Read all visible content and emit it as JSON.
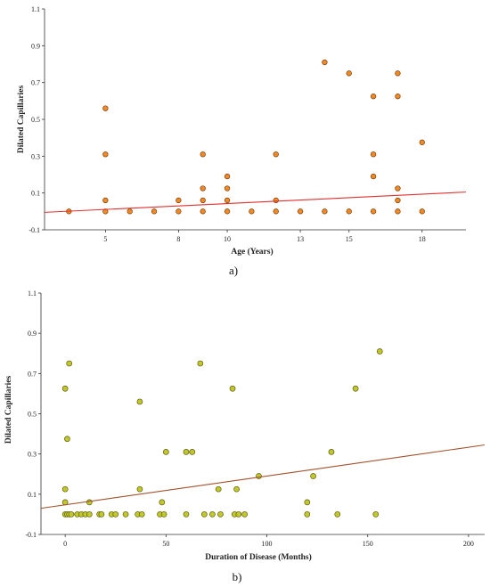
{
  "chart_data": [
    {
      "type": "scatter",
      "panel_label": "a)",
      "xlabel": "Age (Years)",
      "ylabel": "Dilated Capillaries",
      "xlim": [
        2.5,
        19.8
      ],
      "ylim": [
        -0.1,
        1.1
      ],
      "x_ticks": [
        5,
        8,
        10,
        13,
        15,
        18
      ],
      "x_tick_labels": [
        "5",
        "8",
        "10",
        "13",
        "15",
        "18"
      ],
      "y_ticks": [
        -0.1,
        0.1,
        0.3,
        0.5,
        0.7,
        0.9,
        1.1
      ],
      "y_tick_labels": [
        "-0.1",
        "0.1",
        "0.3",
        "0.5",
        "0.7",
        "0.9",
        "1.1"
      ],
      "grid": false,
      "marker_color": "#f08a24",
      "marker_edge": "#7a3b0c",
      "line_color": "#e03030",
      "fit_line": [
        [
          2.5,
          -0.005
        ],
        [
          19.8,
          0.105
        ]
      ],
      "points": [
        [
          3.5,
          0
        ],
        [
          5,
          0
        ],
        [
          5,
          0.06
        ],
        [
          5,
          0.31
        ],
        [
          5,
          0.56
        ],
        [
          6,
          0
        ],
        [
          7,
          0
        ],
        [
          8,
          0
        ],
        [
          8,
          0.06
        ],
        [
          9,
          0
        ],
        [
          9,
          0.06
        ],
        [
          9,
          0.125
        ],
        [
          9,
          0.31
        ],
        [
          10,
          0
        ],
        [
          10,
          0.06
        ],
        [
          10,
          0.125
        ],
        [
          10,
          0.19
        ],
        [
          11,
          0
        ],
        [
          12,
          0
        ],
        [
          12,
          0.06
        ],
        [
          12,
          0.31
        ],
        [
          13,
          0
        ],
        [
          14,
          0
        ],
        [
          14,
          0.81
        ],
        [
          15,
          0
        ],
        [
          15,
          0.75
        ],
        [
          16,
          0
        ],
        [
          16,
          0.19
        ],
        [
          16,
          0.31
        ],
        [
          16,
          0.625
        ],
        [
          17,
          0
        ],
        [
          17,
          0.06
        ],
        [
          17,
          0.125
        ],
        [
          17,
          0.625
        ],
        [
          17,
          0.75
        ],
        [
          18,
          0.375
        ],
        [
          18,
          0
        ]
      ]
    },
    {
      "type": "scatter",
      "panel_label": "b)",
      "xlabel": "Duration of Disease (Months)",
      "ylabel": "Dilated Capillaries",
      "xlim": [
        -12,
        208
      ],
      "ylim": [
        -0.1,
        1.1
      ],
      "x_ticks": [
        0,
        50,
        100,
        150,
        200
      ],
      "x_tick_labels": [
        "0",
        "50",
        "100",
        "150",
        "200"
      ],
      "y_ticks": [
        -0.1,
        0.1,
        0.3,
        0.5,
        0.7,
        0.9,
        1.1
      ],
      "y_tick_labels": [
        "-0.1",
        "0.1",
        "0.3",
        "0.5",
        "0.7",
        "0.9",
        "1.1"
      ],
      "grid": false,
      "marker_color": "#c2c82a",
      "marker_edge": "#5a5a10",
      "line_color": "#a0522d",
      "fit_line": [
        [
          -12,
          0.03
        ],
        [
          208,
          0.345
        ]
      ],
      "points": [
        [
          0,
          0.625
        ],
        [
          0,
          0.125
        ],
        [
          0,
          0.06
        ],
        [
          0,
          0
        ],
        [
          1,
          0
        ],
        [
          1,
          0.375
        ],
        [
          2,
          0.75
        ],
        [
          2,
          0
        ],
        [
          3,
          0
        ],
        [
          6,
          0
        ],
        [
          8,
          0
        ],
        [
          10,
          0
        ],
        [
          12,
          0
        ],
        [
          12,
          0.06
        ],
        [
          17,
          0
        ],
        [
          18,
          0
        ],
        [
          23,
          0
        ],
        [
          25,
          0
        ],
        [
          30,
          0
        ],
        [
          36,
          0
        ],
        [
          37,
          0.56
        ],
        [
          37,
          0.125
        ],
        [
          38,
          0
        ],
        [
          47,
          0
        ],
        [
          48,
          0.06
        ],
        [
          49,
          0
        ],
        [
          50,
          0.31
        ],
        [
          60,
          0
        ],
        [
          60,
          0.31
        ],
        [
          63,
          0.31
        ],
        [
          67,
          0.75
        ],
        [
          69,
          0
        ],
        [
          73,
          0
        ],
        [
          76,
          0.125
        ],
        [
          77,
          0
        ],
        [
          83,
          0.625
        ],
        [
          84,
          0
        ],
        [
          85,
          0.125
        ],
        [
          86,
          0
        ],
        [
          89,
          0
        ],
        [
          96,
          0.19
        ],
        [
          120,
          0.06
        ],
        [
          120,
          0
        ],
        [
          123,
          0.19
        ],
        [
          132,
          0.31
        ],
        [
          135,
          0
        ],
        [
          144,
          0.625
        ],
        [
          154,
          0
        ],
        [
          156,
          0.81
        ]
      ]
    }
  ]
}
